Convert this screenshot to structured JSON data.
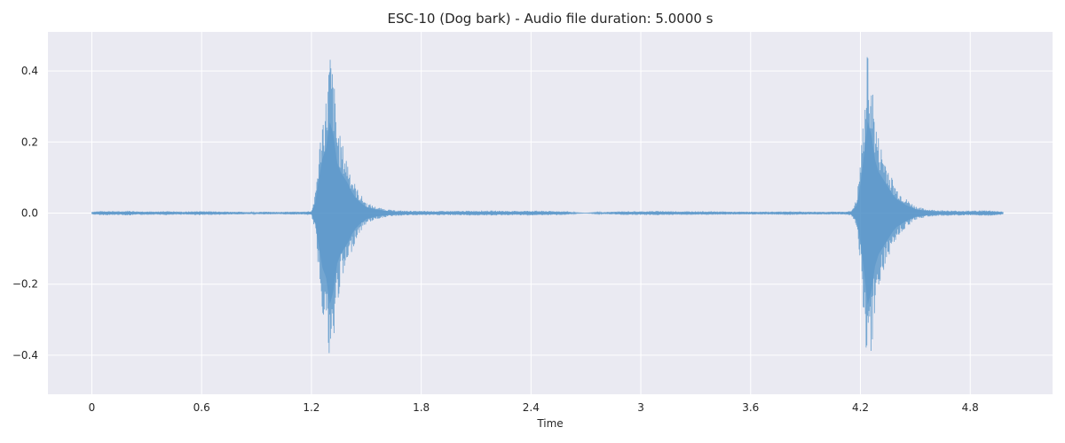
{
  "chart_data": {
    "type": "line",
    "title": "ESC-10 (Dog bark) - Audio file duration: 5.0000 s",
    "xlabel": "Time",
    "ylabel": "",
    "xlim": [
      -0.24,
      5.25
    ],
    "ylim": [
      -0.51,
      0.51
    ],
    "x_ticks": [
      0,
      0.6,
      1.2,
      1.8,
      2.4,
      3.0,
      3.6,
      4.2,
      4.8
    ],
    "x_tick_labels": [
      "0",
      "0.6",
      "1.2",
      "1.8",
      "2.4",
      "3",
      "3.6",
      "4.2",
      "4.8"
    ],
    "y_ticks": [
      -0.4,
      -0.2,
      0.0,
      0.2,
      0.4
    ],
    "y_tick_labels": [
      "−0.4",
      "−0.2",
      "0.0",
      "0.2",
      "0.4"
    ],
    "grid": true,
    "legend": "none",
    "colors": {
      "background": "#eaeaf2",
      "grid": "#ffffff",
      "wave": "#4c8fc6"
    },
    "series": [
      {
        "x": [
          0.0,
          0.05,
          0.1,
          0.15,
          0.2,
          0.25,
          0.3,
          0.35,
          0.4,
          0.45,
          0.5,
          0.55,
          0.6,
          0.65,
          0.7,
          0.75,
          0.8,
          0.85,
          0.9,
          0.95,
          1.0,
          1.05,
          1.1,
          1.15,
          1.2,
          1.22,
          1.24,
          1.26,
          1.28,
          1.3,
          1.32,
          1.34,
          1.36,
          1.38,
          1.4,
          1.42,
          1.44,
          1.46,
          1.5,
          1.55,
          1.6,
          1.65,
          1.7,
          1.8,
          1.9,
          2.0,
          2.1,
          2.2,
          2.3,
          2.4,
          2.5,
          2.6,
          2.65,
          2.7,
          2.8,
          2.9,
          3.0,
          3.1,
          3.2,
          3.3,
          3.4,
          3.5,
          3.6,
          3.7,
          3.8,
          3.9,
          4.0,
          4.1,
          4.15,
          4.18,
          4.2,
          4.22,
          4.24,
          4.26,
          4.28,
          4.3,
          4.32,
          4.34,
          4.36,
          4.38,
          4.4,
          4.45,
          4.5,
          4.55,
          4.6,
          4.7,
          4.8,
          4.9,
          4.98
        ],
        "envelope": [
          0.004,
          0.006,
          0.006,
          0.005,
          0.007,
          0.005,
          0.005,
          0.004,
          0.006,
          0.005,
          0.004,
          0.005,
          0.006,
          0.005,
          0.005,
          0.004,
          0.004,
          0.003,
          0.003,
          0.004,
          0.003,
          0.004,
          0.004,
          0.004,
          0.006,
          0.05,
          0.17,
          0.28,
          0.33,
          0.47,
          0.4,
          0.26,
          0.21,
          0.18,
          0.15,
          0.11,
          0.08,
          0.06,
          0.03,
          0.018,
          0.012,
          0.008,
          0.007,
          0.006,
          0.006,
          0.006,
          0.007,
          0.007,
          0.006,
          0.007,
          0.006,
          0.005,
          0.001,
          0.0,
          0.003,
          0.005,
          0.005,
          0.006,
          0.005,
          0.005,
          0.005,
          0.004,
          0.004,
          0.004,
          0.005,
          0.004,
          0.004,
          0.004,
          0.006,
          0.04,
          0.15,
          0.3,
          0.47,
          0.4,
          0.27,
          0.21,
          0.18,
          0.15,
          0.12,
          0.09,
          0.07,
          0.04,
          0.02,
          0.012,
          0.009,
          0.007,
          0.007,
          0.008,
          0.004
        ]
      }
    ]
  }
}
